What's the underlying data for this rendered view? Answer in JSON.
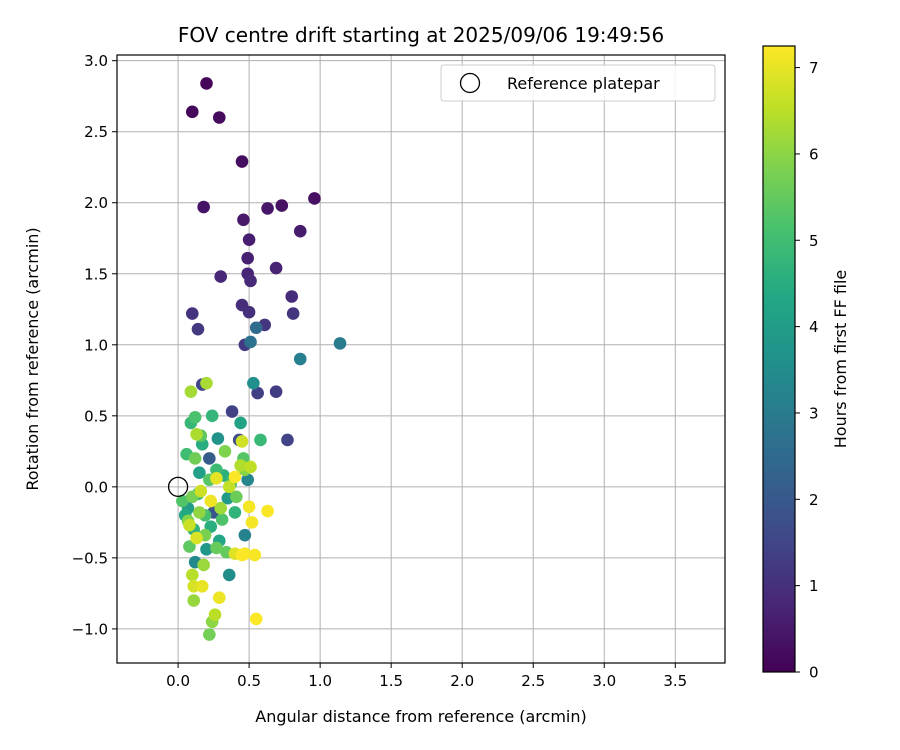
{
  "chart_data": {
    "type": "scatter",
    "title": "FOV centre drift starting at 2025/09/06 19:49:56",
    "xlabel": "Angular distance from reference (arcmin)",
    "ylabel": "Rotation from reference (arcmin)",
    "xlim": [
      -0.43,
      3.85
    ],
    "ylim": [
      -1.24,
      3.04
    ],
    "xticks": [
      0.0,
      0.5,
      1.0,
      1.5,
      2.0,
      2.5,
      3.0,
      3.5
    ],
    "yticks": [
      -1.0,
      -0.5,
      0.0,
      0.5,
      1.0,
      1.5,
      2.0,
      2.5,
      3.0
    ],
    "xtick_labels": [
      "0.0",
      "0.5",
      "1.0",
      "1.5",
      "2.0",
      "2.5",
      "3.0",
      "3.5"
    ],
    "ytick_labels": [
      "−1.0",
      "−0.5",
      "0.0",
      "0.5",
      "1.0",
      "1.5",
      "2.0",
      "2.5",
      "3.0"
    ],
    "grid": true,
    "legend": {
      "placement": "top-right",
      "label": "Reference platepar"
    },
    "reference_point": {
      "x": 0.0,
      "y": 0.0
    },
    "colorbar": {
      "label": "Hours from first FF file",
      "min": 0,
      "max": 7.25,
      "ticks": [
        0,
        1,
        2,
        3,
        4,
        5,
        6,
        7
      ],
      "tick_labels": [
        "0",
        "1",
        "2",
        "3",
        "4",
        "5",
        "6",
        "7"
      ],
      "colormap": "viridis"
    },
    "series": [
      {
        "points": [
          {
            "x": 0.2,
            "y": 2.84,
            "c": 0.1
          },
          {
            "x": 0.1,
            "y": 2.64,
            "c": 0.15
          },
          {
            "x": 0.29,
            "y": 2.6,
            "c": 0.2
          },
          {
            "x": 0.45,
            "y": 2.29,
            "c": 0.25
          },
          {
            "x": 0.96,
            "y": 2.03,
            "c": 0.3
          },
          {
            "x": 0.73,
            "y": 1.98,
            "c": 0.35
          },
          {
            "x": 0.18,
            "y": 1.97,
            "c": 0.4
          },
          {
            "x": 0.63,
            "y": 1.96,
            "c": 0.45
          },
          {
            "x": 0.46,
            "y": 1.88,
            "c": 0.5
          },
          {
            "x": 0.86,
            "y": 1.8,
            "c": 0.55
          },
          {
            "x": 0.5,
            "y": 1.74,
            "c": 0.6
          },
          {
            "x": 0.49,
            "y": 1.61,
            "c": 0.65
          },
          {
            "x": 0.69,
            "y": 1.54,
            "c": 0.7
          },
          {
            "x": 0.49,
            "y": 1.5,
            "c": 0.75
          },
          {
            "x": 0.3,
            "y": 1.48,
            "c": 0.8
          },
          {
            "x": 0.51,
            "y": 1.45,
            "c": 0.85
          },
          {
            "x": 0.8,
            "y": 1.34,
            "c": 0.9
          },
          {
            "x": 0.45,
            "y": 1.28,
            "c": 0.95
          },
          {
            "x": 0.5,
            "y": 1.23,
            "c": 1.0
          },
          {
            "x": 0.1,
            "y": 1.22,
            "c": 1.05
          },
          {
            "x": 0.81,
            "y": 1.22,
            "c": 1.1
          },
          {
            "x": 0.61,
            "y": 1.14,
            "c": 1.15
          },
          {
            "x": 0.14,
            "y": 1.11,
            "c": 1.2
          },
          {
            "x": 0.47,
            "y": 1.0,
            "c": 1.25
          },
          {
            "x": 0.69,
            "y": 0.67,
            "c": 1.3
          },
          {
            "x": 0.56,
            "y": 0.66,
            "c": 1.35
          },
          {
            "x": 0.38,
            "y": 0.53,
            "c": 1.4
          },
          {
            "x": 0.77,
            "y": 0.33,
            "c": 1.45
          },
          {
            "x": 0.17,
            "y": 0.72,
            "c": 1.5
          },
          {
            "x": 0.43,
            "y": 0.33,
            "c": 1.7
          },
          {
            "x": 0.25,
            "y": -0.18,
            "c": 1.9
          },
          {
            "x": 0.22,
            "y": 0.2,
            "c": 2.1
          },
          {
            "x": 0.55,
            "y": 1.12,
            "c": 2.5
          },
          {
            "x": 0.51,
            "y": 1.02,
            "c": 2.7
          },
          {
            "x": 1.14,
            "y": 1.01,
            "c": 3.0
          },
          {
            "x": 0.86,
            "y": 0.9,
            "c": 3.1
          },
          {
            "x": 0.47,
            "y": -0.34,
            "c": 3.2
          },
          {
            "x": 0.49,
            "y": 0.05,
            "c": 3.3
          },
          {
            "x": 0.12,
            "y": -0.53,
            "c": 3.4
          },
          {
            "x": 0.36,
            "y": -0.62,
            "c": 3.5
          },
          {
            "x": 0.53,
            "y": 0.73,
            "c": 3.6
          },
          {
            "x": 0.28,
            "y": 0.34,
            "c": 3.7
          },
          {
            "x": 0.2,
            "y": -0.44,
            "c": 3.8
          },
          {
            "x": 0.35,
            "y": -0.08,
            "c": 3.9
          },
          {
            "x": 0.07,
            "y": -0.15,
            "c": 4.0
          },
          {
            "x": 0.15,
            "y": 0.1,
            "c": 4.1
          },
          {
            "x": 0.44,
            "y": 0.45,
            "c": 4.2
          },
          {
            "x": 0.29,
            "y": -0.38,
            "c": 4.3
          },
          {
            "x": 0.05,
            "y": -0.2,
            "c": 4.4
          },
          {
            "x": 0.17,
            "y": 0.3,
            "c": 4.5
          },
          {
            "x": 0.23,
            "y": -0.28,
            "c": 4.55
          },
          {
            "x": 0.32,
            "y": 0.08,
            "c": 4.6
          },
          {
            "x": 0.11,
            "y": -0.3,
            "c": 4.65
          },
          {
            "x": 0.4,
            "y": -0.18,
            "c": 4.7
          },
          {
            "x": 0.24,
            "y": 0.5,
            "c": 4.75
          },
          {
            "x": 0.09,
            "y": 0.45,
            "c": 4.8
          },
          {
            "x": 0.58,
            "y": 0.33,
            "c": 4.85
          },
          {
            "x": 0.14,
            "y": -0.05,
            "c": 4.9
          },
          {
            "x": 0.27,
            "y": 0.12,
            "c": 4.95
          },
          {
            "x": 0.06,
            "y": 0.23,
            "c": 5.0
          },
          {
            "x": 0.37,
            "y": 0.02,
            "c": 5.05
          },
          {
            "x": 0.19,
            "y": -0.2,
            "c": 5.1
          },
          {
            "x": 0.12,
            "y": 0.49,
            "c": 5.15
          },
          {
            "x": 0.31,
            "y": -0.23,
            "c": 5.2
          },
          {
            "x": 0.03,
            "y": -0.1,
            "c": 5.25
          },
          {
            "x": 0.46,
            "y": 0.2,
            "c": 5.3
          },
          {
            "x": 0.22,
            "y": 0.05,
            "c": 5.35
          },
          {
            "x": 0.16,
            "y": 0.36,
            "c": 5.4
          },
          {
            "x": 0.08,
            "y": -0.42,
            "c": 5.45
          },
          {
            "x": 0.34,
            "y": -0.46,
            "c": 5.5
          },
          {
            "x": 0.27,
            "y": -0.43,
            "c": 5.55
          },
          {
            "x": 0.41,
            "y": -0.07,
            "c": 5.6
          },
          {
            "x": 0.12,
            "y": 0.2,
            "c": 5.65
          },
          {
            "x": 0.22,
            "y": -1.04,
            "c": 5.7
          },
          {
            "x": 0.1,
            "y": -0.07,
            "c": 5.75
          },
          {
            "x": 0.19,
            "y": -0.34,
            "c": 5.8
          },
          {
            "x": 0.33,
            "y": 0.25,
            "c": 5.85
          },
          {
            "x": 0.07,
            "y": -0.24,
            "c": 5.9
          },
          {
            "x": 0.47,
            "y": 0.12,
            "c": 5.95
          },
          {
            "x": 0.24,
            "y": -0.95,
            "c": 6.0
          },
          {
            "x": 0.15,
            "y": -0.18,
            "c": 6.05
          },
          {
            "x": 0.11,
            "y": -0.8,
            "c": 6.1
          },
          {
            "x": 0.18,
            "y": -0.55,
            "c": 6.15
          },
          {
            "x": 0.3,
            "y": -0.15,
            "c": 6.2
          },
          {
            "x": 0.09,
            "y": 0.67,
            "c": 6.25
          },
          {
            "x": 0.2,
            "y": 0.73,
            "c": 6.3
          },
          {
            "x": 0.13,
            "y": 0.37,
            "c": 6.35
          },
          {
            "x": 0.44,
            "y": 0.15,
            "c": 6.4
          },
          {
            "x": 0.1,
            "y": -0.62,
            "c": 6.45
          },
          {
            "x": 0.26,
            "y": -0.9,
            "c": 6.5
          },
          {
            "x": 0.51,
            "y": 0.14,
            "c": 6.55
          },
          {
            "x": 0.36,
            "y": 0.0,
            "c": 6.6
          },
          {
            "x": 0.08,
            "y": -0.27,
            "c": 6.65
          },
          {
            "x": 0.16,
            "y": -0.03,
            "c": 6.7
          },
          {
            "x": 0.45,
            "y": 0.32,
            "c": 6.75
          },
          {
            "x": 0.11,
            "y": -0.7,
            "c": 6.8
          },
          {
            "x": 0.13,
            "y": -0.36,
            "c": 6.85
          },
          {
            "x": 0.4,
            "y": -0.47,
            "c": 6.9
          },
          {
            "x": 0.27,
            "y": 0.06,
            "c": 6.95
          },
          {
            "x": 0.17,
            "y": -0.7,
            "c": 7.0
          },
          {
            "x": 0.29,
            "y": -0.78,
            "c": 7.05
          },
          {
            "x": 0.23,
            "y": -0.1,
            "c": 7.1
          },
          {
            "x": 0.5,
            "y": -0.14,
            "c": 7.12
          },
          {
            "x": 0.47,
            "y": -0.47,
            "c": 7.14
          },
          {
            "x": 0.52,
            "y": -0.25,
            "c": 7.16
          },
          {
            "x": 0.54,
            "y": -0.48,
            "c": 7.18
          },
          {
            "x": 0.63,
            "y": -0.17,
            "c": 7.2
          },
          {
            "x": 0.55,
            "y": -0.93,
            "c": 7.22
          },
          {
            "x": 0.4,
            "y": 0.07,
            "c": 7.23
          },
          {
            "x": 0.45,
            "y": -0.48,
            "c": 7.24
          }
        ]
      }
    ]
  }
}
